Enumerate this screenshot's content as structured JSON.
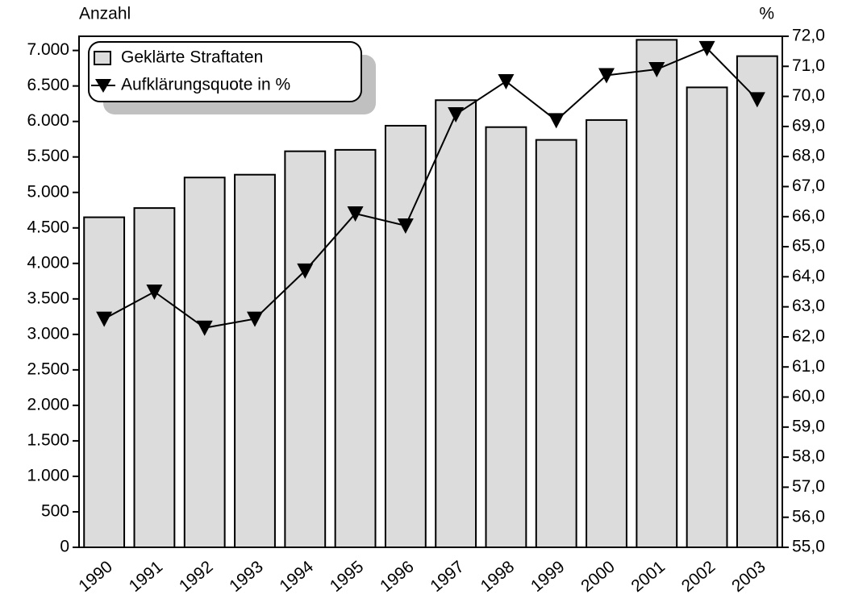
{
  "chart_data": {
    "type": "bar_line",
    "y_label": "Anzahl",
    "y2_label": "%",
    "categories": [
      "1990",
      "1991",
      "1992",
      "1993",
      "1994",
      "1995",
      "1996",
      "1997",
      "1998",
      "1999",
      "2000",
      "2001",
      "2002",
      "2003"
    ],
    "series": [
      {
        "name": "Geklärte Straftaten",
        "type": "bar",
        "color": "#dcdcdc",
        "values": [
          4650,
          4780,
          5210,
          5250,
          5580,
          5600,
          5940,
          6300,
          5920,
          5740,
          6020,
          7150,
          6480,
          6920
        ]
      },
      {
        "name": "Aufklärungsquote in %",
        "type": "line",
        "axis": "y2",
        "color": "#000000",
        "values": [
          62.6,
          63.5,
          62.3,
          62.6,
          64.2,
          66.1,
          65.7,
          69.4,
          70.5,
          69.2,
          70.7,
          70.9,
          71.6,
          69.9
        ]
      }
    ],
    "ylim": [
      0,
      7200
    ],
    "yticks": [
      0,
      500,
      {
        "value": 1000,
        "label": "1.000"
      },
      {
        "value": 1500,
        "label": "1.500"
      },
      {
        "value": 2000,
        "label": "2.000"
      },
      {
        "value": 2500,
        "label": "2.500"
      },
      {
        "value": 3000,
        "label": "3.000"
      },
      {
        "value": 3500,
        "label": "3.500"
      },
      {
        "value": 4000,
        "label": "4.000"
      },
      {
        "value": 4500,
        "label": "4.500"
      },
      {
        "value": 5000,
        "label": "5.000"
      },
      {
        "value": 5500,
        "label": "5.500"
      },
      {
        "value": 6000,
        "label": "6.000"
      },
      {
        "value": 6500,
        "label": "6.500"
      },
      {
        "value": 7000,
        "label": "7.000"
      }
    ],
    "y2lim": [
      55,
      72
    ],
    "y2ticks": [
      {
        "value": 55,
        "label": "55,0"
      },
      {
        "value": 56,
        "label": "56,0"
      },
      {
        "value": 57,
        "label": "57,0"
      },
      {
        "value": 58,
        "label": "58,0"
      },
      {
        "value": 59,
        "label": "59,0"
      },
      {
        "value": 60,
        "label": "60,0"
      },
      {
        "value": 61,
        "label": "61,0"
      },
      {
        "value": 62,
        "label": "62,0"
      },
      {
        "value": 63,
        "label": "63,0"
      },
      {
        "value": 64,
        "label": "64,0"
      },
      {
        "value": 65,
        "label": "65,0"
      },
      {
        "value": 66,
        "label": "66,0"
      },
      {
        "value": 67,
        "label": "67,0"
      },
      {
        "value": 68,
        "label": "68,0"
      },
      {
        "value": 69,
        "label": "69,0"
      },
      {
        "value": 70,
        "label": "70,0"
      },
      {
        "value": 71,
        "label": "71,0"
      },
      {
        "value": 72,
        "label": "72,0"
      }
    ],
    "legend": "upper left"
  }
}
